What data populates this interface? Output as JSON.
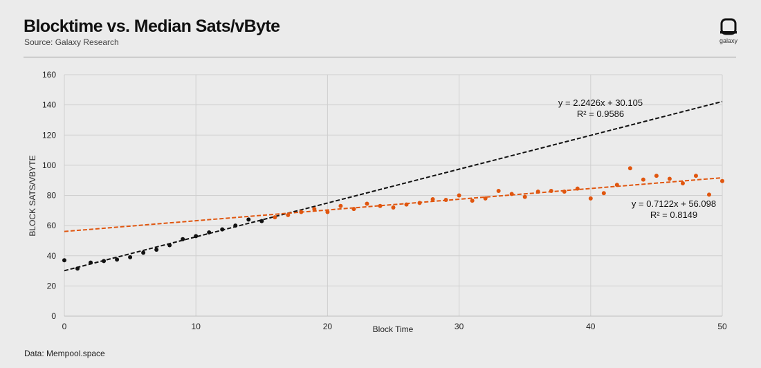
{
  "header": {
    "title": "Blocktime vs. Median Sats/vByte",
    "subtitle": "Source: Galaxy Research",
    "logo_text": "galaxy"
  },
  "footer": {
    "data_source": "Data: Mempool.space"
  },
  "colors": {
    "series_black": "#111111",
    "series_orange": "#e0560f",
    "grid": "#cfcfcf",
    "background": "#ebebeb"
  },
  "chart_data": {
    "type": "scatter",
    "title": "Blocktime vs. Median Sats/vByte",
    "xlabel": "Block Time",
    "ylabel": "BLOCK SATS/VBYTE",
    "xlim": [
      0,
      50
    ],
    "ylim": [
      0,
      160
    ],
    "xticks": [
      0,
      10,
      20,
      30,
      40,
      50
    ],
    "yticks": [
      0,
      20,
      40,
      60,
      80,
      100,
      120,
      140,
      160
    ],
    "grid": true,
    "series": [
      {
        "color": "#111111",
        "points": [
          [
            0,
            37
          ],
          [
            1,
            31.5
          ],
          [
            2,
            35.5
          ],
          [
            3,
            36.5
          ],
          [
            4,
            37.5
          ],
          [
            5,
            39
          ],
          [
            6,
            42
          ],
          [
            7,
            44
          ],
          [
            8,
            47
          ],
          [
            9,
            51
          ],
          [
            10,
            53
          ],
          [
            11,
            55.5
          ],
          [
            12,
            57.5
          ],
          [
            13,
            60
          ],
          [
            14,
            64
          ],
          [
            15,
            63
          ]
        ],
        "trendline": {
          "slope": 2.2426,
          "intercept": 30.105,
          "x_range": [
            0,
            50
          ]
        },
        "equation": "y = 2.2426x + 30.105",
        "r_squared": "R² = 0.9586"
      },
      {
        "color": "#e0560f",
        "points": [
          [
            16,
            65.5
          ],
          [
            17,
            67
          ],
          [
            18,
            69
          ],
          [
            19,
            71
          ],
          [
            20,
            69
          ],
          [
            21,
            73
          ],
          [
            22,
            71
          ],
          [
            23,
            74.5
          ],
          [
            24,
            73
          ],
          [
            25,
            72
          ],
          [
            26,
            74
          ],
          [
            27,
            75
          ],
          [
            28,
            77.5
          ],
          [
            29,
            77
          ],
          [
            30,
            80
          ],
          [
            31,
            76.5
          ],
          [
            32,
            78
          ],
          [
            33,
            83
          ],
          [
            34,
            81
          ],
          [
            35,
            79
          ],
          [
            36,
            82.5
          ],
          [
            37,
            83
          ],
          [
            38,
            82.5
          ],
          [
            39,
            84.5
          ],
          [
            40,
            78
          ],
          [
            41,
            81.5
          ],
          [
            42,
            87
          ],
          [
            43,
            98
          ],
          [
            44,
            90.5
          ],
          [
            45,
            93
          ],
          [
            46,
            91
          ],
          [
            47,
            88
          ],
          [
            48,
            93
          ],
          [
            49,
            80.5
          ],
          [
            50,
            89.5
          ]
        ],
        "trendline": {
          "slope": 0.7122,
          "intercept": 56.098,
          "x_range": [
            0,
            50
          ]
        },
        "equation": "y = 0.7122x + 56.098",
        "r_squared": "R² = 0.8149"
      }
    ]
  }
}
